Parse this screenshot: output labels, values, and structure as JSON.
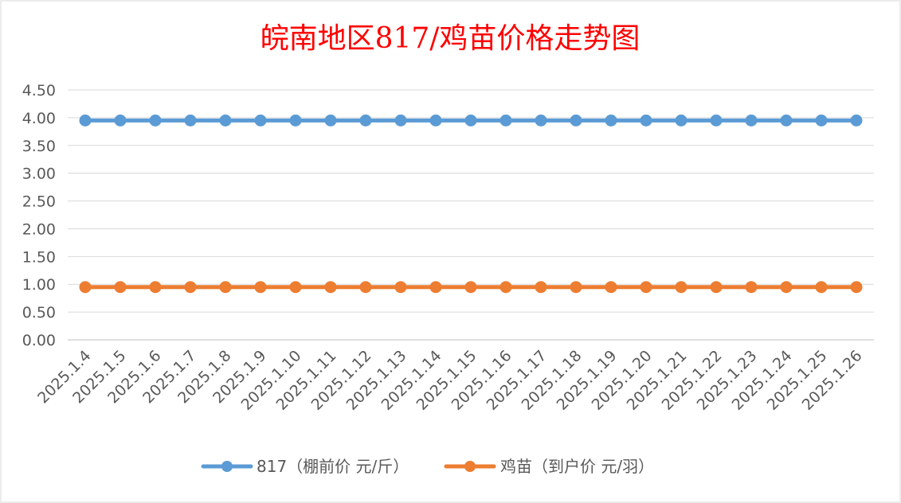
{
  "chart_data": {
    "type": "line",
    "title": "皖南地区817/鸡苗价格走势图",
    "xlabel": "",
    "ylabel": "",
    "categories": [
      "2025.1.4",
      "2025.1.5",
      "2025.1.6",
      "2025.1.7",
      "2025.1.8",
      "2025.1.9",
      "2025.1.10",
      "2025.1.11",
      "2025.1.12",
      "2025.1.13",
      "2025.1.14",
      "2025.1.15",
      "2025.1.16",
      "2025.1.17",
      "2025.1.18",
      "2025.1.19",
      "2025.1.20",
      "2025.1.21",
      "2025.1.22",
      "2025.1.23",
      "2025.1.24",
      "2025.1.25",
      "2025.1.26"
    ],
    "yticks": [
      "0.00",
      "0.50",
      "1.00",
      "1.50",
      "2.00",
      "2.50",
      "3.00",
      "3.50",
      "4.00",
      "4.50"
    ],
    "ylim": [
      0,
      4.5
    ],
    "grid": true,
    "legend_position": "bottom",
    "series": [
      {
        "name": "817（棚前价 元/斤）",
        "color": "#5b9bd5",
        "values": [
          3.95,
          3.95,
          3.95,
          3.95,
          3.95,
          3.95,
          3.95,
          3.95,
          3.95,
          3.95,
          3.95,
          3.95,
          3.95,
          3.95,
          3.95,
          3.95,
          3.95,
          3.95,
          3.95,
          3.95,
          3.95,
          3.95,
          3.95
        ]
      },
      {
        "name": "鸡苗（到户价 元/羽）",
        "color": "#ed7d31",
        "values": [
          0.95,
          0.95,
          0.95,
          0.95,
          0.95,
          0.95,
          0.95,
          0.95,
          0.95,
          0.95,
          0.95,
          0.95,
          0.95,
          0.95,
          0.95,
          0.95,
          0.95,
          0.95,
          0.95,
          0.95,
          0.95,
          0.95,
          0.95
        ]
      }
    ]
  }
}
